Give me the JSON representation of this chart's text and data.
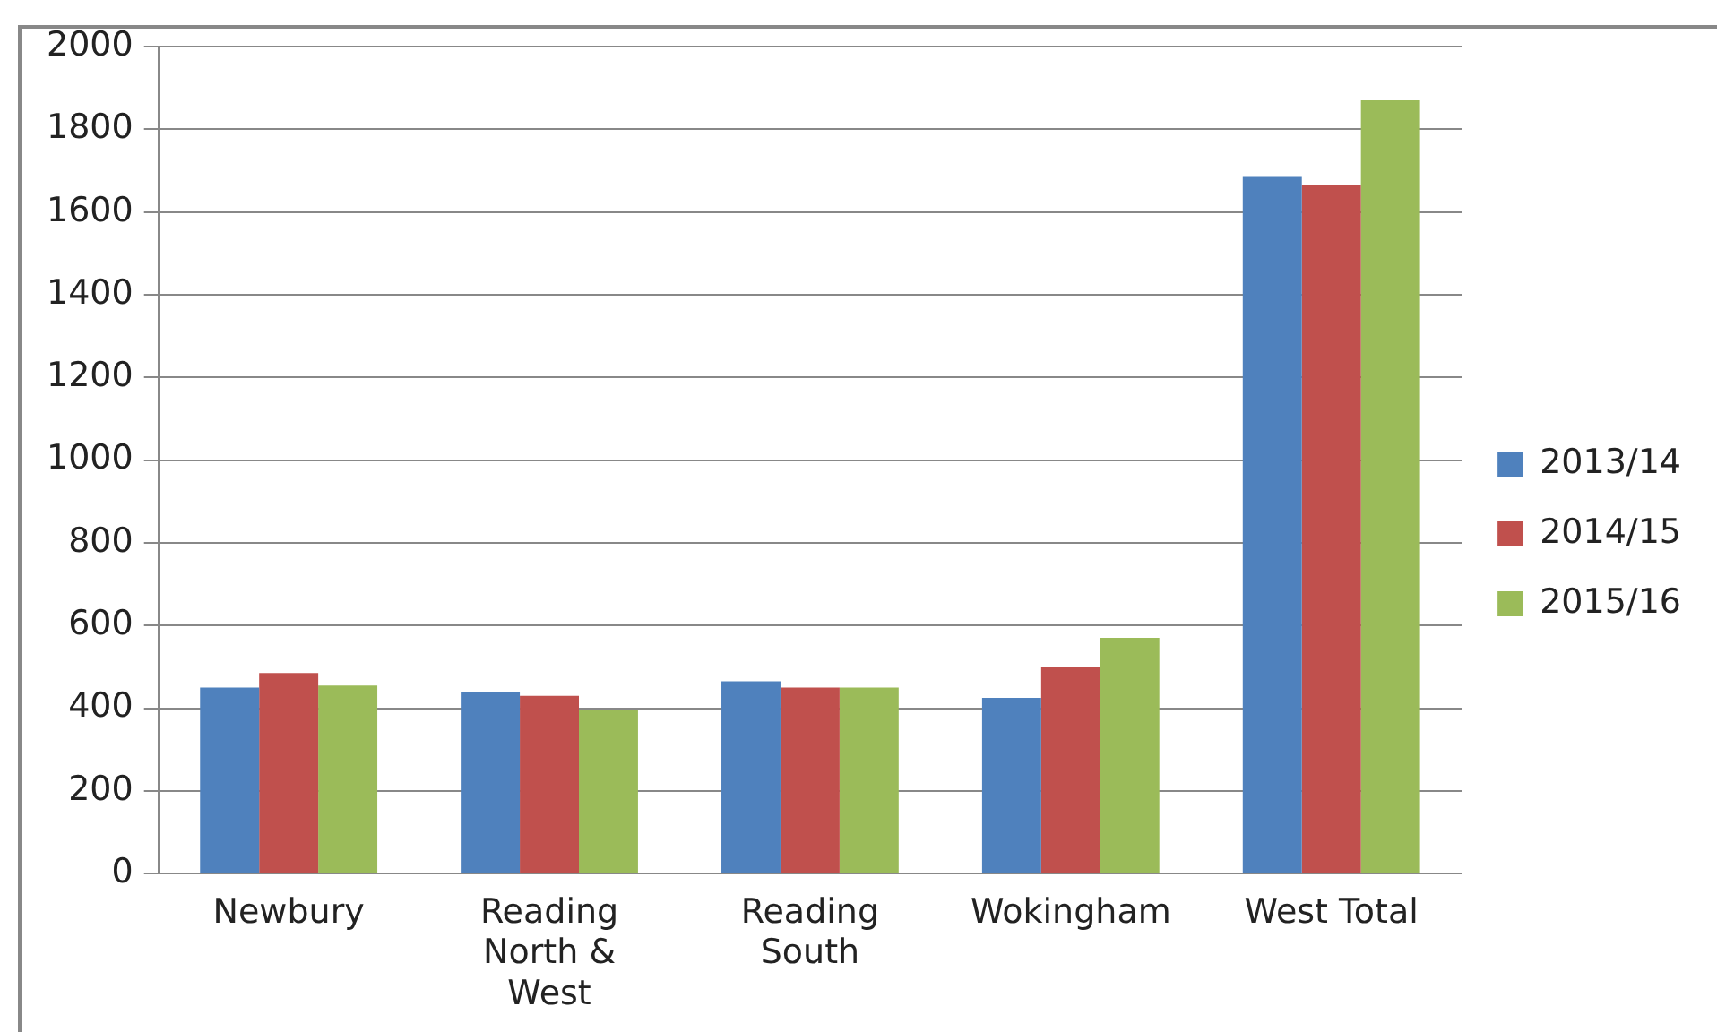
{
  "chart_data": {
    "type": "bar",
    "categories": [
      "Newbury",
      "Reading North & West",
      "Reading South",
      "Wokingham",
      "West Total"
    ],
    "series": [
      {
        "name": "2013/14",
        "color": "#4f81bd",
        "values": [
          450,
          440,
          465,
          425,
          1685
        ]
      },
      {
        "name": "2014/15",
        "color": "#c0504d",
        "values": [
          485,
          430,
          450,
          500,
          1665
        ]
      },
      {
        "name": "2015/16",
        "color": "#9bbb59",
        "values": [
          455,
          395,
          450,
          570,
          1870
        ]
      }
    ],
    "ylim": [
      0,
      2000
    ],
    "yticks": [
      0,
      200,
      400,
      600,
      800,
      1000,
      1200,
      1400,
      1600,
      1800,
      2000
    ],
    "grid": "y",
    "legend": "right"
  }
}
